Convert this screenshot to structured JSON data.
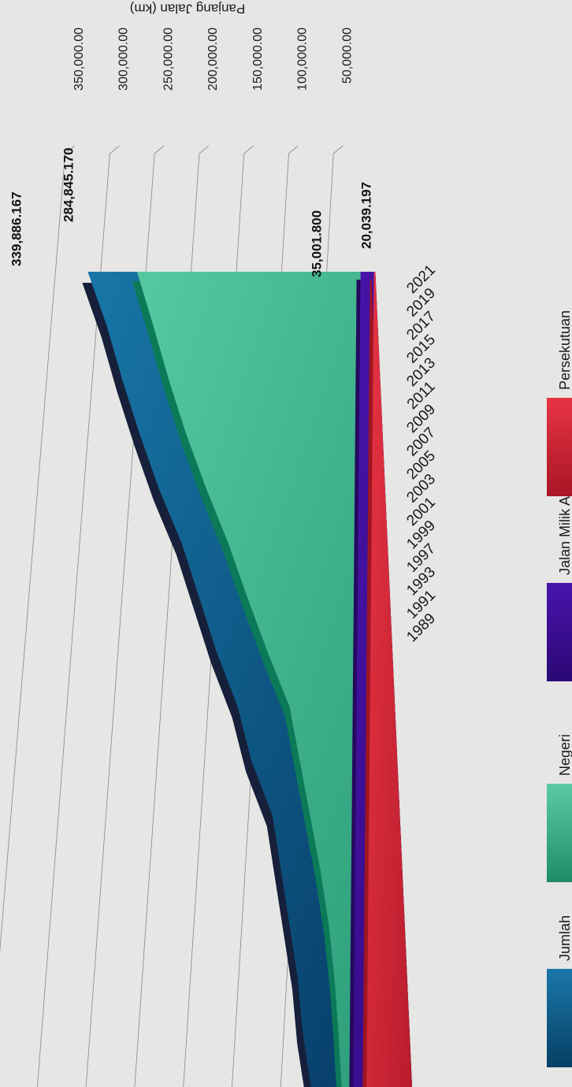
{
  "chart_data": {
    "type": "area",
    "ylabel": "Panjang Jalan (km)",
    "x": [
      "1989",
      "1991",
      "1993",
      "1997",
      "1999",
      "2001",
      "2003",
      "2005",
      "2007",
      "2009",
      "2011",
      "2013",
      "2015",
      "2017",
      "2019",
      "2021"
    ],
    "yticks": [
      "50,000.00",
      "100,000.00",
      "150,000.00",
      "200,000.00",
      "250,000.00",
      "300,000.00",
      "350,000.00"
    ],
    "ylim": [
      0,
      350000
    ],
    "legend_position": "bottom",
    "series": [
      {
        "name": "Jumlah",
        "color": "#0f5a8a",
        "values": [
          82000,
          92000,
          98000,
          108000,
          118000,
          128000,
          152000,
          168000,
          192000,
          212000,
          232000,
          258000,
          280000,
          300000,
          318000,
          339886.167
        ]
      },
      {
        "name": "Negeri",
        "color": "#3cb88f",
        "values": [
          48000,
          52000,
          57000,
          64000,
          74000,
          86000,
          98000,
          110000,
          135000,
          158000,
          180000,
          205000,
          228000,
          248000,
          266000,
          284845.17
        ]
      },
      {
        "name": "Jalan Milik Agensi",
        "color": "#3d0f96",
        "values": [
          35001.8,
          35001.8,
          35001.8,
          35001.8,
          35001.8,
          35001.8,
          35001.8,
          35001.8,
          35001.8,
          35001.8,
          35001.8,
          35001.8,
          35001.8,
          35001.8,
          35001.8,
          35001.8
        ]
      },
      {
        "name": "Persekutuan",
        "color": "#d8283a",
        "values": [
          20039.197,
          20039.197,
          20039.197,
          20039.197,
          20039.197,
          20039.197,
          20039.197,
          20039.197,
          20039.197,
          20039.197,
          20039.197,
          20039.197,
          20039.197,
          20039.197,
          20039.197,
          20039.197
        ]
      }
    ],
    "data_labels": [
      "339,886.167",
      "284,845.170",
      "35,001.800",
      "20,039.197"
    ]
  }
}
